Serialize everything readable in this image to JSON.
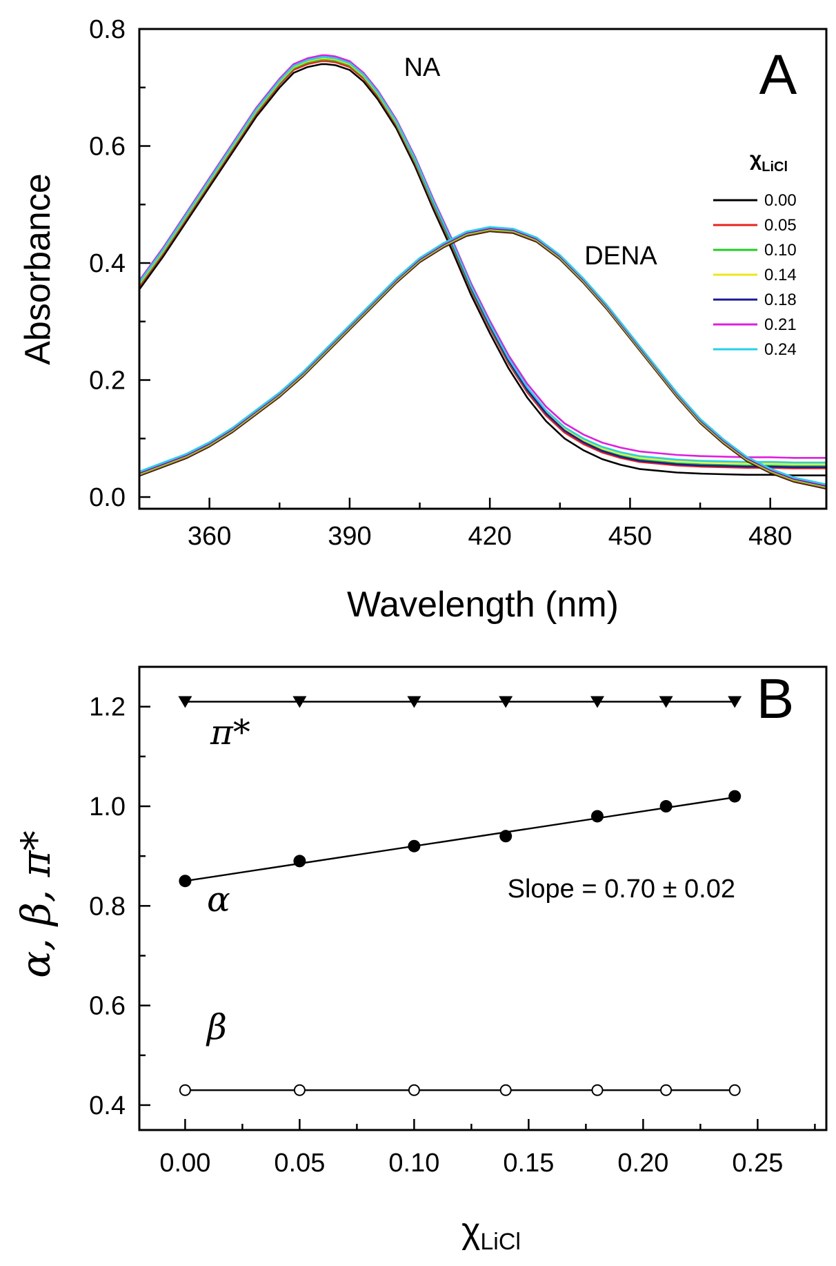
{
  "chart_data": [
    {
      "type": "line",
      "panel": "A",
      "xlabel": "Wavelength (nm)",
      "ylabel": "Absorbance",
      "xlim": [
        345,
        492
      ],
      "ylim": [
        -0.02,
        0.8
      ],
      "xticks": [
        360,
        390,
        420,
        450,
        480
      ],
      "xtick_labels": [
        "360",
        "390",
        "420",
        "450",
        "480"
      ],
      "yticks": [
        0.0,
        0.2,
        0.4,
        0.6,
        0.8
      ],
      "ytick_labels": [
        "0.0",
        "0.2",
        "0.4",
        "0.6",
        "0.8"
      ],
      "annotations": {
        "na": "NA",
        "dena": "DENA"
      },
      "grid": false,
      "legend": {
        "title_main": "χ",
        "title_sub": "LiCl",
        "placement": "right",
        "entries": [
          {
            "label": "0.00",
            "color": "#000000"
          },
          {
            "label": "0.05",
            "color": "#e8231e"
          },
          {
            "label": "0.10",
            "color": "#22cc22"
          },
          {
            "label": "0.14",
            "color": "#ece61a"
          },
          {
            "label": "0.18",
            "color": "#1a1a96"
          },
          {
            "label": "0.21",
            "color": "#e01ee0"
          },
          {
            "label": "0.24",
            "color": "#22d2e6"
          }
        ]
      },
      "na_curve": {
        "x": [
          345,
          350,
          355,
          360,
          365,
          370,
          375,
          378,
          381,
          384,
          385,
          387,
          390,
          393,
          396,
          400,
          404,
          408,
          412,
          416,
          420,
          424,
          428,
          432,
          436,
          440,
          444,
          448,
          452,
          456,
          460,
          465,
          470,
          475,
          480,
          485,
          492
        ],
        "y": [
          0.355,
          0.41,
          0.47,
          0.53,
          0.59,
          0.65,
          0.7,
          0.725,
          0.735,
          0.74,
          0.74,
          0.738,
          0.73,
          0.71,
          0.68,
          0.63,
          0.565,
          0.49,
          0.42,
          0.345,
          0.28,
          0.22,
          0.17,
          0.13,
          0.1,
          0.08,
          0.065,
          0.055,
          0.048,
          0.045,
          0.042,
          0.04,
          0.039,
          0.038,
          0.038,
          0.037,
          0.037
        ],
        "offsets": [
          0.0,
          0.005,
          0.008,
          0.01,
          0.012,
          0.015,
          0.012
        ],
        "baseline_offsets": [
          0.0,
          0.012,
          0.016,
          0.02,
          0.014,
          0.03,
          0.022
        ]
      },
      "dena_curve": {
        "x": [
          345,
          350,
          355,
          360,
          365,
          370,
          375,
          380,
          385,
          390,
          395,
          400,
          405,
          410,
          415,
          420,
          425,
          430,
          435,
          440,
          445,
          450,
          455,
          460,
          465,
          470,
          475,
          480,
          485,
          492
        ],
        "y": [
          0.04,
          0.055,
          0.07,
          0.09,
          0.115,
          0.145,
          0.175,
          0.21,
          0.25,
          0.29,
          0.33,
          0.37,
          0.405,
          0.43,
          0.45,
          0.458,
          0.455,
          0.44,
          0.41,
          0.37,
          0.325,
          0.275,
          0.225,
          0.175,
          0.13,
          0.095,
          0.065,
          0.045,
          0.03,
          0.018
        ]
      }
    },
    {
      "type": "scatter",
      "panel": "B",
      "xlabel_main": "χ",
      "xlabel_sub": "LiCl",
      "ylabel": "α, β, π*",
      "xlim": [
        -0.02,
        0.28
      ],
      "ylim": [
        0.35,
        1.28
      ],
      "xticks": [
        0.0,
        0.05,
        0.1,
        0.15,
        0.2,
        0.25
      ],
      "xtick_labels": [
        "0.00",
        "0.05",
        "0.10",
        "0.15",
        "0.20",
        "0.25"
      ],
      "yticks": [
        0.4,
        0.6,
        0.8,
        1.0,
        1.2
      ],
      "ytick_labels": [
        "0.4",
        "0.6",
        "0.8",
        "1.0",
        "1.2"
      ],
      "x": [
        0.0,
        0.05,
        0.1,
        0.14,
        0.18,
        0.21,
        0.24
      ],
      "grid": false,
      "series": [
        {
          "name": "π*",
          "values": [
            1.21,
            1.21,
            1.21,
            1.21,
            1.21,
            1.21,
            1.21
          ],
          "marker": "triangle-down",
          "fit": [
            1.21,
            1.21
          ]
        },
        {
          "name": "α",
          "values": [
            0.85,
            0.89,
            0.92,
            0.94,
            0.98,
            1.0,
            1.02
          ],
          "marker": "filled-circle",
          "fit": [
            0.85,
            1.018
          ]
        },
        {
          "name": "β",
          "values": [
            0.43,
            0.43,
            0.43,
            0.43,
            0.43,
            0.43,
            0.43
          ],
          "marker": "open-circle",
          "fit": [
            0.43,
            0.43
          ]
        }
      ],
      "annotation": "Slope = 0.70 ± 0.02"
    }
  ],
  "panels": {
    "a": "A",
    "b": "B"
  }
}
